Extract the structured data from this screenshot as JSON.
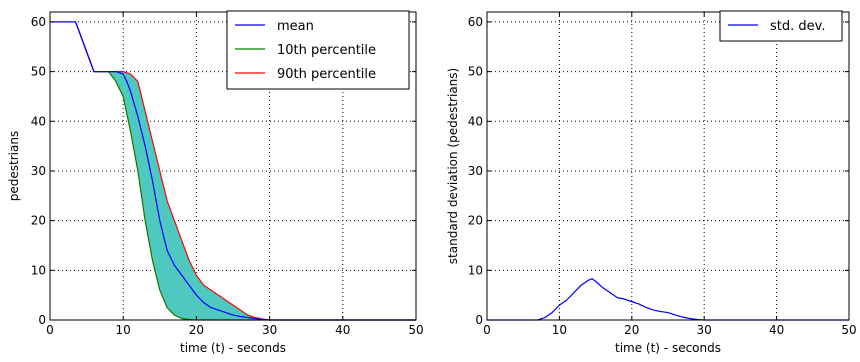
{
  "chart_data": [
    {
      "type": "line",
      "title": "",
      "xlabel": "time (t) - seconds",
      "ylabel": "pedestrians",
      "xlim": [
        0,
        50
      ],
      "ylim": [
        0,
        62
      ],
      "xticks": [
        0,
        10,
        20,
        30,
        40,
        50
      ],
      "yticks": [
        0,
        10,
        20,
        30,
        40,
        50,
        60
      ],
      "grid": true,
      "legend_position": "top-right",
      "fill_between": {
        "lower_series": "10th percentile",
        "upper_series": "90th percentile",
        "color": "#4fc9c0"
      },
      "series": [
        {
          "name": "mean",
          "color": "#0000ff",
          "x": [
            0,
            3.5,
            4,
            5,
            6,
            7,
            8,
            9,
            10,
            10.5,
            11,
            12,
            13,
            14,
            15,
            16,
            17,
            18,
            19,
            20,
            21,
            22,
            23,
            24,
            25,
            26,
            27,
            28,
            29,
            30,
            50
          ],
          "y": [
            60,
            60,
            58,
            54,
            50,
            50,
            50,
            50,
            49.5,
            48,
            46,
            41,
            35,
            28,
            20,
            14,
            11,
            9,
            7,
            5,
            3.5,
            2.5,
            2,
            1.5,
            1,
            0.7,
            0.5,
            0.3,
            0.1,
            0,
            0
          ]
        },
        {
          "name": "10th percentile",
          "color": "#008000",
          "x": [
            0,
            3.5,
            4,
            5,
            6,
            7,
            8,
            9,
            10,
            11,
            12,
            13,
            14,
            15,
            16,
            17,
            18,
            19,
            20,
            21,
            50
          ],
          "y": [
            60,
            60,
            58,
            54,
            50,
            50,
            50,
            48,
            45,
            38,
            30,
            20,
            12,
            6,
            2.5,
            1,
            0.3,
            0.1,
            0,
            0,
            0
          ]
        },
        {
          "name": "90th percentile",
          "color": "#ff0000",
          "x": [
            0,
            3.5,
            4,
            5,
            6,
            7,
            8,
            9,
            10,
            11,
            12,
            13,
            14,
            15,
            16,
            17,
            18,
            19,
            20,
            21,
            22,
            23,
            24,
            25,
            26,
            27,
            28,
            29,
            30,
            50
          ],
          "y": [
            60,
            60,
            58,
            54,
            50,
            50,
            50,
            50,
            50,
            49.5,
            48,
            42,
            36,
            30,
            24,
            20,
            16,
            12,
            9,
            7,
            6,
            5,
            4,
            3,
            2,
            1,
            0.5,
            0.2,
            0,
            0
          ]
        }
      ]
    },
    {
      "type": "line",
      "title": "",
      "xlabel": "time (t) - seconds",
      "ylabel": "standard deviation (pedestrians)",
      "xlim": [
        0,
        50
      ],
      "ylim": [
        0,
        62
      ],
      "xticks": [
        0,
        10,
        20,
        30,
        40,
        50
      ],
      "yticks": [
        0,
        10,
        20,
        30,
        40,
        50,
        60
      ],
      "grid": true,
      "legend_position": "top-right",
      "series": [
        {
          "name": "std. dev.",
          "color": "#0000ff",
          "x": [
            0,
            7,
            8,
            9,
            10,
            11,
            12,
            13,
            14,
            14.5,
            15,
            16,
            17,
            18,
            19,
            20,
            21,
            22,
            23,
            24,
            25,
            26,
            27,
            28,
            29,
            30,
            50
          ],
          "y": [
            0,
            0,
            0.5,
            1.5,
            3,
            4,
            5.5,
            7,
            8,
            8.3,
            7.8,
            6.5,
            5.5,
            4.5,
            4.2,
            3.7,
            3.2,
            2.5,
            2,
            1.7,
            1.5,
            1,
            0.6,
            0.3,
            0.1,
            0,
            0
          ]
        }
      ]
    }
  ]
}
